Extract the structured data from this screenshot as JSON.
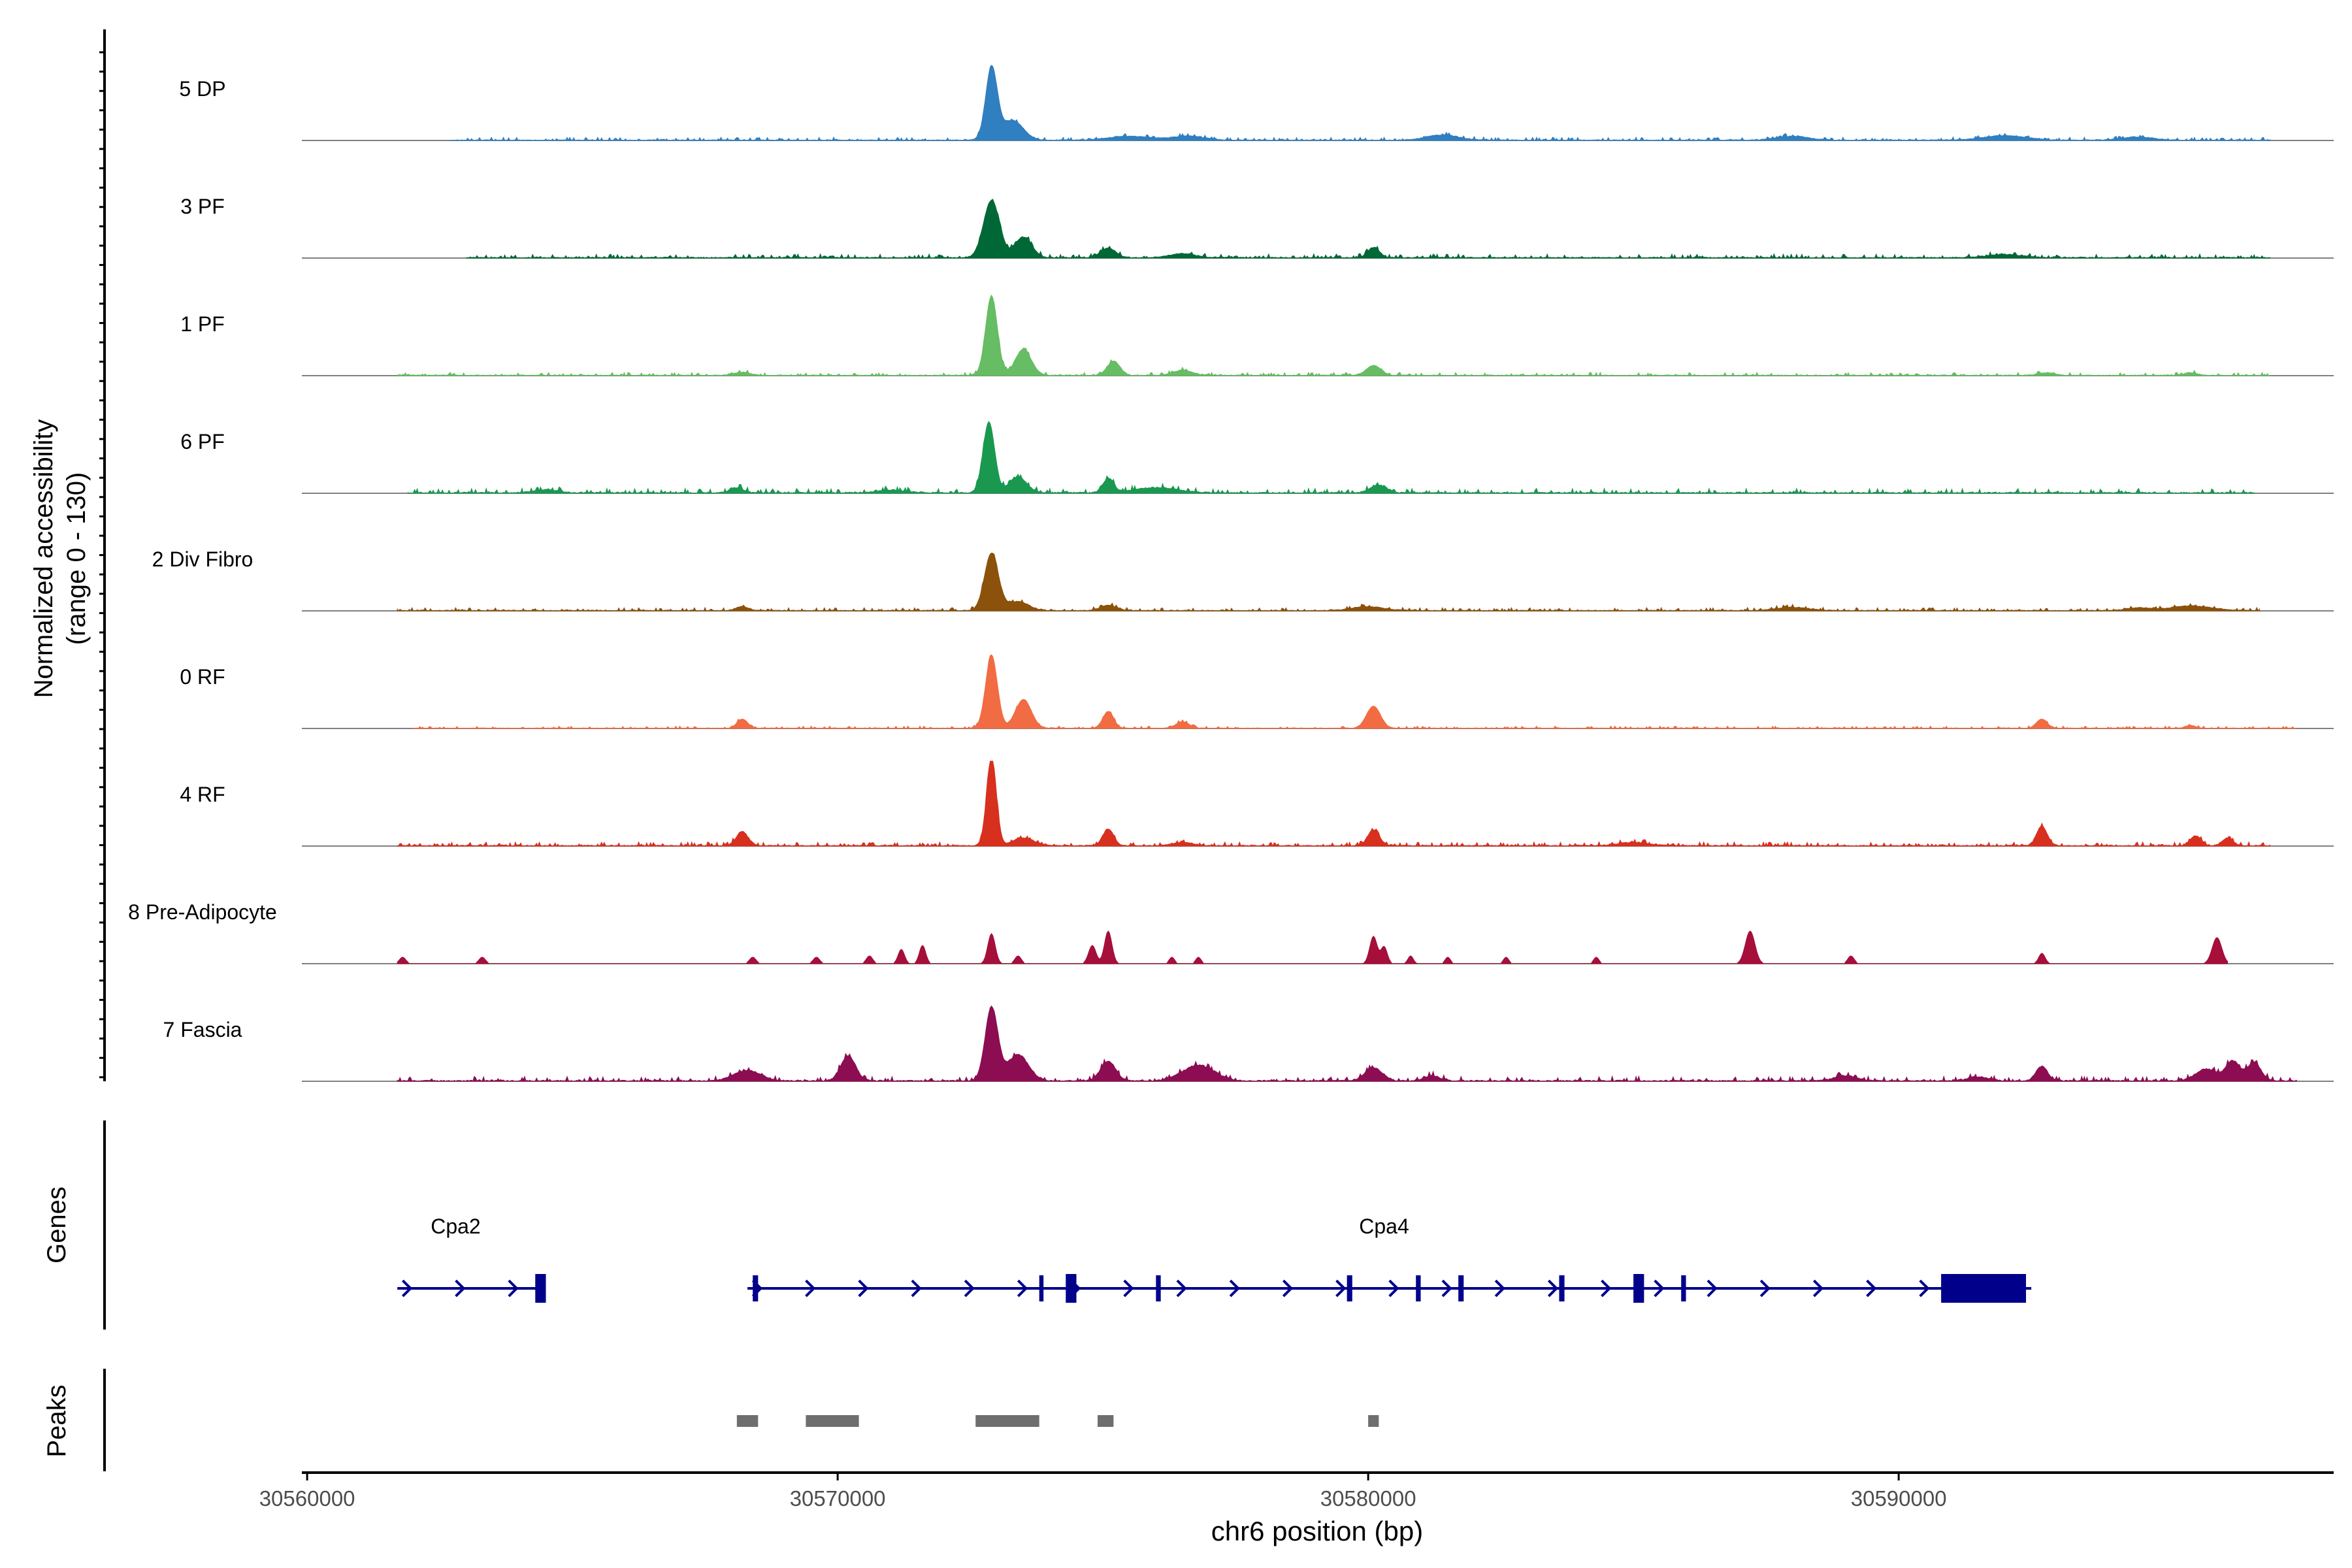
{
  "chart_data": {
    "type": "area",
    "title": "",
    "region": "chr6",
    "xlabel": "chr6 position (bp)",
    "ylabel": "Normalized accessibility",
    "ylabel_range": "(range 0 - 130)",
    "ylim": [
      0,
      130
    ],
    "xlim": [
      30559900,
      30598200
    ],
    "x_ticks": [
      30560000,
      30570000,
      30580000,
      30590000
    ],
    "x_tick_labels": [
      "30560000",
      "30570000",
      "30580000",
      "30590000"
    ],
    "tracks": [
      {
        "name": "5 DP",
        "color": "#2f7fc1",
        "start": 30562700,
        "end": 30597000,
        "noise": 2.0,
        "peaks": [
          [
            30572900,
            110,
            110
          ],
          [
            30573300,
            30,
            200
          ],
          [
            30575500,
            6,
            400
          ],
          [
            30576600,
            6,
            300
          ],
          [
            30581400,
            8,
            300
          ],
          [
            30588000,
            6,
            300
          ],
          [
            30592000,
            7,
            400
          ],
          [
            30594500,
            5,
            300
          ]
        ]
      },
      {
        "name": "3 PF",
        "color": "#006837",
        "start": 30563000,
        "end": 30597000,
        "noise": 2.5,
        "peaks": [
          [
            30572900,
            88,
            150
          ],
          [
            30573500,
            32,
            160
          ],
          [
            30575100,
            15,
            140
          ],
          [
            30576500,
            6,
            250
          ],
          [
            30580100,
            16,
            110
          ],
          [
            30592000,
            5,
            300
          ]
        ]
      },
      {
        "name": "1 PF",
        "color": "#66bd63",
        "start": 30561700,
        "end": 30597000,
        "noise": 2.0,
        "peaks": [
          [
            30572900,
            122,
            110
          ],
          [
            30573500,
            40,
            150
          ],
          [
            30575200,
            22,
            120
          ],
          [
            30576500,
            8,
            180
          ],
          [
            30580100,
            15,
            140
          ],
          [
            30568200,
            5,
            150
          ],
          [
            30592800,
            4,
            150
          ],
          [
            30595500,
            4,
            120
          ]
        ]
      },
      {
        "name": "6 PF",
        "color": "#1a9850",
        "start": 30561900,
        "end": 30596700,
        "noise": 3.0,
        "peaks": [
          [
            30572850,
            108,
            110
          ],
          [
            30573400,
            25,
            160
          ],
          [
            30575100,
            22,
            100
          ],
          [
            30576000,
            8,
            400
          ],
          [
            30580200,
            12,
            150
          ],
          [
            30568100,
            8,
            120
          ],
          [
            30564500,
            5,
            200
          ],
          [
            30571000,
            4,
            300
          ]
        ]
      },
      {
        "name": "2 Div Fibro",
        "color": "#8c510a",
        "start": 30561700,
        "end": 30596800,
        "noise": 2.0,
        "peaks": [
          [
            30572900,
            88,
            130
          ],
          [
            30573400,
            14,
            200
          ],
          [
            30575100,
            8,
            150
          ],
          [
            30568200,
            6,
            120
          ],
          [
            30580000,
            6,
            300
          ],
          [
            30588000,
            5,
            300
          ],
          [
            30595500,
            7,
            400
          ],
          [
            30594500,
            4,
            200
          ]
        ]
      },
      {
        "name": "0 RF",
        "color": "#f16b43",
        "start": 30562000,
        "end": 30597500,
        "noise": 1.5,
        "peaks": [
          [
            30572900,
            112,
            110
          ],
          [
            30573500,
            44,
            150
          ],
          [
            30575100,
            26,
            100
          ],
          [
            30576500,
            10,
            120
          ],
          [
            30580100,
            34,
            130
          ],
          [
            30568200,
            14,
            100
          ],
          [
            30592700,
            14,
            100
          ],
          [
            30595500,
            4,
            100
          ]
        ]
      },
      {
        "name": "4 RF",
        "color": "#d7301f",
        "start": 30561700,
        "end": 30597000,
        "noise": 2.5,
        "peaks": [
          [
            30572900,
            138,
            90
          ],
          [
            30573500,
            12,
            200
          ],
          [
            30575100,
            26,
            100
          ],
          [
            30580100,
            24,
            110
          ],
          [
            30568200,
            22,
            110
          ],
          [
            30592700,
            30,
            100
          ],
          [
            30595600,
            15,
            100
          ],
          [
            30596200,
            12,
            100
          ],
          [
            30585000,
            5,
            300
          ],
          [
            30576500,
            5,
            200
          ]
        ]
      },
      {
        "name": "8 Pre-Adipocyte",
        "color": "#a50f3a",
        "start": 30561700,
        "end": 30596200,
        "noise": 0.0,
        "peaks": [
          [
            30572900,
            46,
            70
          ],
          [
            30575100,
            50,
            70
          ],
          [
            30574800,
            28,
            70
          ],
          [
            30580100,
            42,
            70
          ],
          [
            30580300,
            26,
            60
          ],
          [
            30587200,
            50,
            90
          ],
          [
            30596000,
            40,
            90
          ],
          [
            30596500,
            20,
            60
          ],
          [
            30571200,
            22,
            60
          ],
          [
            30571600,
            28,
            60
          ],
          [
            30570600,
            12,
            60
          ],
          [
            30568400,
            10,
            60
          ],
          [
            30569600,
            10,
            60
          ],
          [
            30573400,
            12,
            60
          ],
          [
            30576300,
            10,
            50
          ],
          [
            30576800,
            10,
            50
          ],
          [
            30580800,
            12,
            50
          ],
          [
            30581500,
            10,
            50
          ],
          [
            30582600,
            10,
            50
          ],
          [
            30584300,
            10,
            50
          ],
          [
            30589100,
            12,
            60
          ],
          [
            30592700,
            16,
            60
          ],
          [
            30561800,
            10,
            60
          ],
          [
            30563300,
            10,
            60
          ]
        ]
      },
      {
        "name": "7 Fascia",
        "color": "#8c0d52",
        "start": 30561700,
        "end": 30597500,
        "noise": 3.0,
        "peaks": [
          [
            30572900,
            112,
            120
          ],
          [
            30573400,
            40,
            200
          ],
          [
            30575100,
            30,
            140
          ],
          [
            30570200,
            38,
            140
          ],
          [
            30568300,
            16,
            250
          ],
          [
            30576800,
            24,
            300
          ],
          [
            30580100,
            20,
            160
          ],
          [
            30581200,
            8,
            150
          ],
          [
            30592700,
            22,
            110
          ],
          [
            30595800,
            18,
            200
          ],
          [
            30596300,
            30,
            130
          ],
          [
            30596700,
            28,
            130
          ],
          [
            30589000,
            8,
            200
          ],
          [
            30591500,
            6,
            200
          ]
        ]
      }
    ],
    "genes": [
      {
        "name": "Cpa2",
        "label_x": 30562800,
        "start": 30561700,
        "end": 30564500,
        "exons": [
          [
            30564300,
            30564500
          ]
        ]
      },
      {
        "name": "Cpa4",
        "label_x": 30580300,
        "start": 30568300,
        "end": 30592500,
        "exons": [
          [
            30568400,
            30568500
          ],
          [
            30573800,
            30573880
          ],
          [
            30574300,
            30574500
          ],
          [
            30576000,
            30576090
          ],
          [
            30579600,
            30579700
          ],
          [
            30580900,
            30580990
          ],
          [
            30581700,
            30581800
          ],
          [
            30583600,
            30583700
          ],
          [
            30585000,
            30585200
          ],
          [
            30585900,
            30585990
          ],
          [
            30590800,
            30592400
          ]
        ]
      }
    ],
    "peaks_track": [
      [
        30568100,
        30568500
      ],
      [
        30569400,
        30570400
      ],
      [
        30572600,
        30573800
      ],
      [
        30574900,
        30575200
      ],
      [
        30580000,
        30580200
      ]
    ],
    "panel_labels": {
      "genes": "Genes",
      "peaks": "Peaks"
    },
    "colors": {
      "gene": "#00008b",
      "peak": "#6e6e6e",
      "baseline": "#808080"
    }
  }
}
